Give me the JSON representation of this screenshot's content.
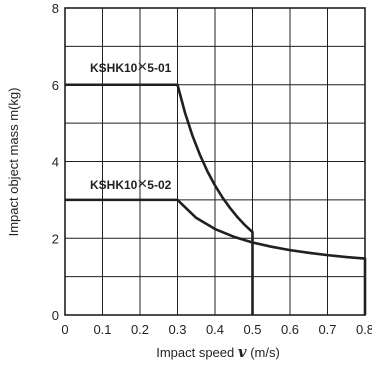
{
  "chart_data": {
    "type": "line",
    "xlabel_prefix": "Impact speed ",
    "xlabel_var": "v",
    "xlabel_suffix": " (m/s)",
    "ylabel": "Impact object mass m(kg)",
    "xlim": [
      0,
      0.8
    ],
    "ylim": [
      0,
      8
    ],
    "x_ticks": [
      "0",
      "0.1",
      "0.2",
      "0.3",
      "0.4",
      "0.5",
      "0.6",
      "0.7",
      "0.8"
    ],
    "y_ticks": [
      "0",
      "2",
      "4",
      "6",
      "8"
    ],
    "grid": true,
    "series": [
      {
        "name": "KSHK10×5-01",
        "label_part1": "KSHK10",
        "label_part2": "×",
        "label_part3": "5-01",
        "x": [
          0,
          0.3,
          0.32,
          0.34,
          0.36,
          0.38,
          0.4,
          0.42,
          0.44,
          0.46,
          0.48,
          0.5,
          0.5
        ],
        "y": [
          6.0,
          6.0,
          5.27,
          4.67,
          4.17,
          3.74,
          3.375,
          3.06,
          2.79,
          2.55,
          2.34,
          2.16,
          0
        ]
      },
      {
        "name": "KSHK10×5-02",
        "label_part1": "KSHK10",
        "label_part2": "×",
        "label_part3": "5-02",
        "x": [
          0,
          0.3,
          0.35,
          0.4,
          0.45,
          0.5,
          0.55,
          0.6,
          0.65,
          0.7,
          0.75,
          0.8,
          0.8
        ],
        "y": [
          3.0,
          3.0,
          2.53,
          2.24,
          2.04,
          1.89,
          1.78,
          1.69,
          1.62,
          1.56,
          1.51,
          1.47,
          0
        ]
      }
    ],
    "colors": {
      "line": "#231f20",
      "grid": "#231f20",
      "frame": "#231f20"
    }
  }
}
